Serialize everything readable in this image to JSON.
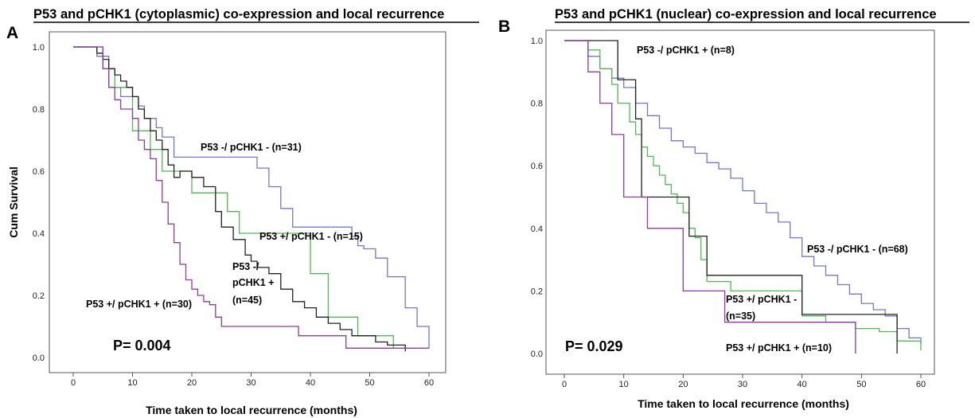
{
  "chart_data": [
    {
      "type": "line",
      "panel_label": "A",
      "title": "P53 and pCHK1 (cytoplasmic) co-expression and local recurrence",
      "xlabel": "Time taken to local recurrence (months)",
      "ylabel": "Cum Survival",
      "xlim": [
        -3,
        62
      ],
      "ylim": [
        -0.02,
        1.02
      ],
      "x_ticks": [
        "0",
        "10",
        "20",
        "30",
        "40",
        "50",
        "60"
      ],
      "y_ticks": [
        "0.0",
        "0.2",
        "0.4",
        "0.6",
        "0.8",
        "1.0"
      ],
      "grid": false,
      "p_value": "P= 0.004",
      "series": [
        {
          "name": "P53 -/ pCHK1 - (n=31)",
          "color": "#6f79c7",
          "x": [
            0,
            4,
            6,
            8,
            11,
            12,
            14,
            15,
            17,
            29,
            31,
            33,
            35,
            37,
            44,
            47,
            48,
            49,
            51,
            53,
            56,
            58,
            60
          ],
          "y": [
            1.0,
            0.97,
            0.87,
            0.84,
            0.81,
            0.77,
            0.74,
            0.71,
            0.645,
            0.645,
            0.61,
            0.55,
            0.48,
            0.42,
            0.42,
            0.39,
            0.36,
            0.35,
            0.32,
            0.26,
            0.16,
            0.1,
            0.03
          ]
        },
        {
          "name": "P53 +/ pCHK1 - (n=15)",
          "color": "#52b852",
          "x": [
            0,
            5,
            7,
            10,
            13,
            15,
            19,
            20,
            23,
            26,
            28,
            30,
            39,
            40,
            43,
            45,
            48,
            50,
            54
          ],
          "y": [
            1.0,
            0.93,
            0.87,
            0.73,
            0.67,
            0.6,
            0.6,
            0.53,
            0.53,
            0.47,
            0.4,
            0.4,
            0.4,
            0.27,
            0.13,
            0.13,
            0.07,
            0.07,
            0.03
          ]
        },
        {
          "name": "P53 -/ pCHK1 + (n=45)",
          "color": "#222222",
          "x": [
            0,
            4,
            5,
            6,
            7,
            8,
            9,
            10,
            11,
            12,
            13,
            14,
            15,
            16,
            17,
            18,
            20,
            22,
            24,
            25,
            27,
            29,
            30,
            31,
            33,
            35,
            37,
            39,
            41,
            43,
            45,
            47,
            49,
            51,
            53,
            55,
            56
          ],
          "y": [
            1.0,
            0.98,
            0.96,
            0.93,
            0.91,
            0.89,
            0.87,
            0.84,
            0.8,
            0.77,
            0.73,
            0.7,
            0.67,
            0.62,
            0.58,
            0.6,
            0.58,
            0.55,
            0.47,
            0.42,
            0.38,
            0.33,
            0.31,
            0.29,
            0.27,
            0.22,
            0.18,
            0.16,
            0.13,
            0.11,
            0.09,
            0.07,
            0.07,
            0.05,
            0.04,
            0.04,
            0.02
          ]
        },
        {
          "name": "P53 +/ pCHK1 + (n=30)",
          "color": "#8a3d99",
          "x": [
            0,
            5,
            6,
            7,
            8,
            10,
            11,
            12,
            13,
            14,
            15,
            16,
            17,
            18,
            19,
            20,
            21,
            22,
            23,
            24,
            25,
            26,
            27,
            30,
            38,
            46,
            60
          ],
          "y": [
            1.0,
            0.93,
            0.87,
            0.83,
            0.8,
            0.77,
            0.7,
            0.67,
            0.64,
            0.57,
            0.5,
            0.43,
            0.37,
            0.3,
            0.25,
            0.22,
            0.2,
            0.18,
            0.17,
            0.13,
            0.1,
            0.1,
            0.1,
            0.1,
            0.07,
            0.03,
            0.03
          ]
        }
      ],
      "annotations": [
        "P53 -/ pCHK1 - (n=31)",
        "P53 +/ pCHK1 - (n=15)",
        "P53 -/",
        "pCHK1 +",
        "(n=45)",
        "P53 +/ pCHK1 + (n=30)"
      ]
    },
    {
      "type": "line",
      "panel_label": "B",
      "title": "P53 and pCHK1 (nuclear) co-expression and local recurrence",
      "xlabel": "Time taken to local recurrence (months)",
      "ylabel": "",
      "xlim": [
        -3,
        61
      ],
      "ylim": [
        -0.02,
        1.02
      ],
      "x_ticks": [
        "0",
        "10",
        "20",
        "30",
        "40",
        "50",
        "60"
      ],
      "y_ticks": [
        "0.0",
        "0.2",
        "0.4",
        "0.6",
        "0.8",
        "1.0"
      ],
      "grid": false,
      "p_value": "P= 0.029",
      "series": [
        {
          "name": "P53 -/ pCHK1 - (n=68)",
          "color": "#6f79c7",
          "x": [
            0,
            4,
            6,
            8,
            10,
            12,
            14,
            16,
            18,
            20,
            22,
            24,
            26,
            28,
            30,
            32,
            34,
            36,
            38,
            40,
            42,
            44,
            46,
            48,
            50,
            52,
            54,
            56,
            58,
            60
          ],
          "y": [
            1.0,
            0.95,
            0.91,
            0.88,
            0.85,
            0.8,
            0.76,
            0.72,
            0.68,
            0.66,
            0.64,
            0.61,
            0.59,
            0.56,
            0.52,
            0.48,
            0.45,
            0.42,
            0.37,
            0.31,
            0.28,
            0.25,
            0.22,
            0.19,
            0.16,
            0.14,
            0.12,
            0.08,
            0.05,
            0.03
          ]
        },
        {
          "name": "P53 +/ pCHK1 - (n=35)",
          "color": "#52b852",
          "x": [
            0,
            4,
            6,
            8,
            9,
            11,
            12,
            13,
            14,
            15,
            16,
            17,
            18,
            19,
            20,
            21,
            22,
            23,
            24,
            28,
            30,
            36,
            40,
            44,
            49,
            53,
            56,
            60
          ],
          "y": [
            1.0,
            0.97,
            0.91,
            0.86,
            0.8,
            0.74,
            0.7,
            0.66,
            0.63,
            0.6,
            0.57,
            0.54,
            0.51,
            0.48,
            0.45,
            0.4,
            0.37,
            0.3,
            0.23,
            0.2,
            0.2,
            0.2,
            0.12,
            0.1,
            0.08,
            0.07,
            0.04,
            0.01
          ]
        },
        {
          "name": "P53 -/ pCHK1 + (n=8)",
          "color": "#222222",
          "x": [
            0,
            9,
            12,
            13,
            21,
            22,
            24,
            40,
            56
          ],
          "y": [
            1.0,
            0.875,
            0.75,
            0.5,
            0.375,
            0.375,
            0.25,
            0.125,
            0.0
          ]
        },
        {
          "name": "P53 +/ pCHK1 + (n=10)",
          "color": "#8a3d99",
          "x": [
            0,
            4,
            6,
            8,
            10,
            14,
            20,
            27,
            49
          ],
          "y": [
            1.0,
            0.9,
            0.8,
            0.7,
            0.5,
            0.4,
            0.2,
            0.1,
            0.0
          ]
        }
      ],
      "annotations": [
        "P53 -/ pCHK1 + (n=8)",
        "P53 -/ pCHK1 - (n=68)",
        "P53 +/ pCHK1 -",
        "(n=35)",
        "P53 +/ pCHK1 + (n=10)"
      ]
    }
  ]
}
